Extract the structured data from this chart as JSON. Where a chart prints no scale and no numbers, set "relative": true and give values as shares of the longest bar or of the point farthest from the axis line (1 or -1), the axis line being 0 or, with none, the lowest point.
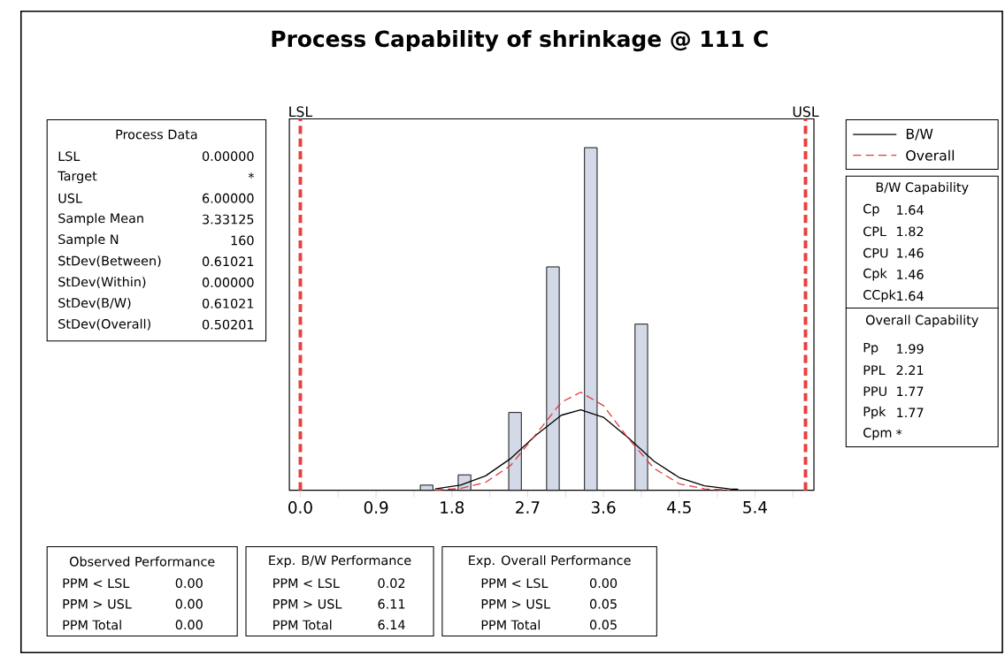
{
  "chart_data": {
    "type": "histogram",
    "title": "Process Capability of shrinkage @ 111 C",
    "relative": true,
    "bins": [
      1.425,
      1.575,
      1.725,
      1.875,
      2.025,
      2.175,
      2.325,
      2.475,
      2.625,
      2.775,
      2.925,
      3.075,
      3.225,
      3.375,
      3.525,
      3.675,
      3.825,
      3.975,
      4.125
    ],
    "values": [
      0.015,
      0,
      0,
      0.045,
      0,
      0,
      0,
      0.227,
      0,
      0,
      0.652,
      0,
      0,
      1,
      0,
      0,
      0,
      0.485
    ],
    "color": "#d4d9e8",
    "series": [
      {
        "name": "B/W",
        "type": "line",
        "color": "#000000",
        "line_style": "solid",
        "x": [
          1.6,
          1.9,
          2.2,
          2.5,
          2.8,
          3.1,
          3.33,
          3.6,
          3.9,
          4.2,
          4.5,
          4.8,
          5.1,
          5.2
        ],
        "values": [
          0.004,
          0.015,
          0.042,
          0.093,
          0.161,
          0.219,
          0.235,
          0.213,
          0.152,
          0.085,
          0.037,
          0.013,
          0.004,
          0.003
        ]
      },
      {
        "name": "Overall",
        "type": "line",
        "color": "#e03a3a",
        "line_style": "dashed",
        "x": [
          1.6,
          1.9,
          2.2,
          2.5,
          2.8,
          3.1,
          3.33,
          3.6,
          3.9,
          4.2,
          4.5,
          4.8,
          5.1
        ],
        "values": [
          0.001,
          0.005,
          0.023,
          0.073,
          0.164,
          0.257,
          0.286,
          0.247,
          0.15,
          0.064,
          0.019,
          0.004,
          0.001
        ]
      }
    ],
    "xlim": [
      -0.13,
      6.1
    ],
    "xticks": [
      {
        "value": 0,
        "label": "0.0"
      },
      {
        "value": 0.45,
        "label": null
      },
      0.9,
      {
        "value": 1.35,
        "label": null
      },
      1.8,
      {
        "value": 2.25,
        "label": null
      },
      2.7,
      {
        "value": 3.15,
        "label": null
      },
      3.6,
      {
        "value": 4.05,
        "label": null
      },
      4.5,
      {
        "value": 4.95,
        "label": null
      },
      5.4,
      {
        "value": 5.85,
        "label": null
      }
    ],
    "ref_lines": [
      {
        "axis": "x",
        "value": 0,
        "label": "LSL",
        "color": "#e8403f",
        "line_style": "dashed"
      },
      {
        "axis": "x",
        "value": 6,
        "label": "USL",
        "color": "#e8403f",
        "line_style": "dashed"
      }
    ],
    "legend": "top right",
    "annotations": [
      "Process Data",
      "LSL",
      "0.00000",
      "Target",
      "*",
      "USL",
      "6.00000",
      "Sample Mean",
      "3.33125",
      "Sample N",
      "160",
      "StDev(Between)",
      "0.61021",
      "StDev(Within)",
      "0.00000",
      "StDev(B/W)",
      "0.61021",
      "StDev(Overall)",
      "0.50201",
      "B/W Capability",
      "Cp",
      "1.64",
      "CPL",
      "1.82",
      "CPU",
      "1.46",
      "Cpk",
      "1.46",
      "CCpk",
      "1.64",
      "Overall Capability",
      "Pp",
      "1.99",
      "PPL",
      "2.21",
      "PPU",
      "1.77",
      "Ppk",
      "1.77",
      "Cpm",
      "*",
      "Observed Performance",
      "PPM < LSL",
      "0.00",
      "PPM > USL",
      "0.00",
      "PPM Total",
      "0.00",
      "Exp. B/W Performance",
      "PPM < LSL",
      "0.02",
      "PPM > USL",
      "6.11",
      "PPM Total",
      "6.14",
      "Exp. Overall Performance",
      "PPM < LSL",
      "0.00",
      "PPM > USL",
      "0.05",
      "PPM Total",
      "0.05"
    ]
  }
}
